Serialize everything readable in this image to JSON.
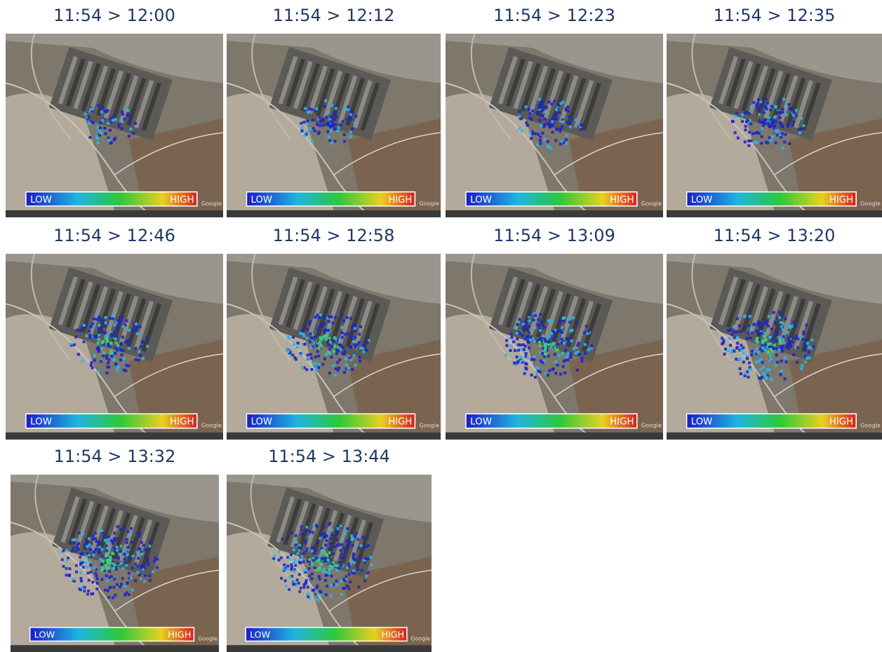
{
  "panels": [
    {
      "title": "11:54 > 12:00"
    },
    {
      "title": "11:54 > 12:12"
    },
    {
      "title": "11:54 > 12:23"
    },
    {
      "title": "11:54 > 12:35"
    },
    {
      "title": "11:54 > 12:46"
    },
    {
      "title": "11:54 > 12:58"
    },
    {
      "title": "11:54 > 13:09"
    },
    {
      "title": "11:54 > 13:20"
    },
    {
      "title": "11:54 > 13:32"
    },
    {
      "title": "11:54 > 13:44"
    }
  ],
  "legend": {
    "low": "LOW",
    "high": "HIGH"
  },
  "attribution": "Google"
}
